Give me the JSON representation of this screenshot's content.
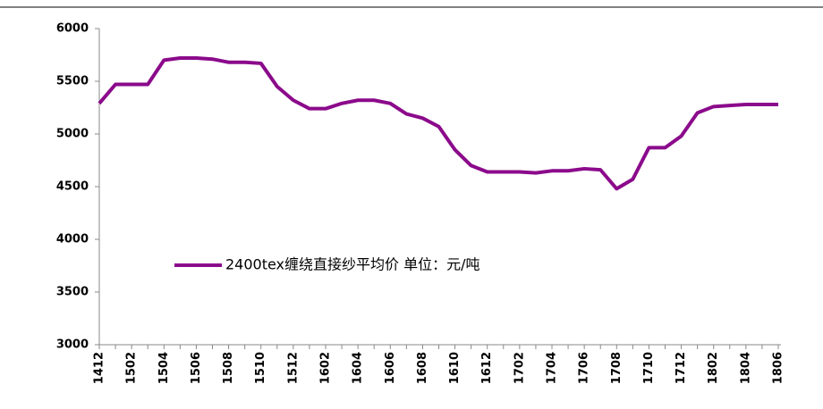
{
  "chart_data": {
    "type": "line",
    "categories": [
      "1412",
      null,
      "1502",
      null,
      "1504",
      null,
      "1506",
      null,
      "1508",
      null,
      "1510",
      null,
      "1512",
      null,
      "1602",
      null,
      "1604",
      null,
      "1606",
      null,
      "1608",
      null,
      "1610",
      null,
      "1612",
      null,
      "1702",
      null,
      "1704",
      null,
      "1706",
      null,
      "1708",
      null,
      "1710",
      null,
      "1712",
      null,
      "1802",
      null,
      "1804",
      null,
      "1806"
    ],
    "series": [
      {
        "name": "2400tex缠绕直接纱平均价 单位：元/吨",
        "color": "#8b0a8b",
        "values": [
          5290,
          5470,
          5470,
          5470,
          5700,
          5720,
          5720,
          5710,
          5680,
          5680,
          5670,
          5450,
          5320,
          5240,
          5240,
          5290,
          5320,
          5320,
          5290,
          5190,
          5150,
          5070,
          4850,
          4700,
          4640,
          4640,
          4640,
          4630,
          4650,
          4650,
          4670,
          4660,
          4480,
          4570,
          4870,
          4870,
          4980,
          5200,
          5260,
          5270,
          5280,
          5280,
          5280
        ]
      }
    ],
    "ylim": [
      3000,
      6000
    ],
    "yticks": [
      3000,
      3500,
      4000,
      4500,
      5000,
      5500,
      6000
    ]
  }
}
